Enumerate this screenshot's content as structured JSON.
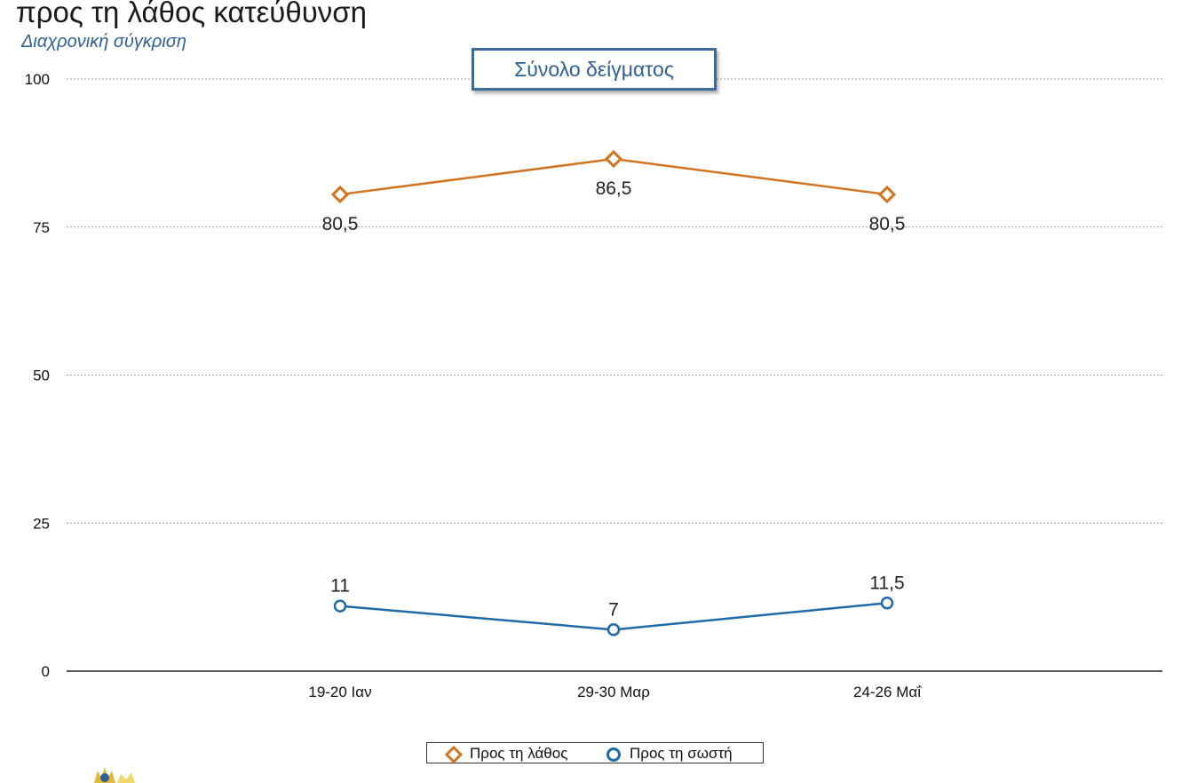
{
  "header": {
    "title": "προς τη λάθος κατεύθυνση",
    "subtitle": "Διαχρονική σύγκριση"
  },
  "sample_box": {
    "label": "Σύνολο δείγματος"
  },
  "colors": {
    "wrong": "#d2731f",
    "right": "#1f6aa8",
    "grid": "#9a9a9a",
    "axis": "#222222"
  },
  "chart_data": {
    "type": "line",
    "title": "προς τη λάθος κατεύθυνση",
    "subtitle": "Διαχρονική σύγκριση",
    "xlabel": "",
    "ylabel": "",
    "categories": [
      "19-20 Ιαν",
      "29-30 Μαρ",
      "24-26 Μαΐ"
    ],
    "ylim": [
      0,
      100
    ],
    "yticks": [
      0,
      25,
      50,
      75,
      100
    ],
    "grid": true,
    "legend_position": "bottom",
    "series": [
      {
        "name": "Προς τη λάθος",
        "marker": "diamond",
        "values": [
          80.5,
          86.5,
          80.5
        ],
        "labels": [
          "80,5",
          "86,5",
          "80,5"
        ]
      },
      {
        "name": "Προς τη σωστή",
        "marker": "circle",
        "values": [
          11,
          7,
          11.5
        ],
        "labels": [
          "11",
          "7",
          "11,5"
        ]
      }
    ]
  }
}
